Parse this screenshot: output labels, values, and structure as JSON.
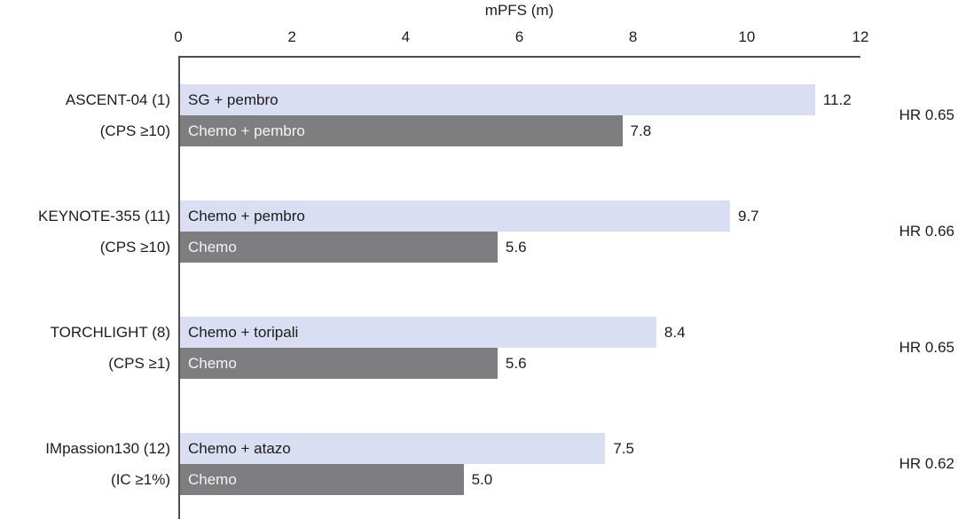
{
  "chart_data": {
    "type": "bar",
    "orientation": "horizontal",
    "title": "mPFS (m)",
    "xlabel": "mPFS (m)",
    "xlim": [
      0,
      12
    ],
    "ticks": [
      0,
      2,
      4,
      6,
      8,
      10,
      12
    ],
    "grid": false,
    "legend": false,
    "colors": {
      "intervention_bar": "#d9def2",
      "control_bar": "#7e7e80",
      "axis": "#4f4f4f"
    },
    "groups": [
      {
        "trial": "ASCENT-04 (1)",
        "population": "(CPS ≥10)",
        "hr": "HR 0.65",
        "bars": [
          {
            "label": "SG + pembro",
            "value": 11.2,
            "display": "11.2",
            "role": "intervention"
          },
          {
            "label": "Chemo + pembro",
            "value": 7.8,
            "display": "7.8",
            "role": "control"
          }
        ]
      },
      {
        "trial": "KEYNOTE-355 (11)",
        "population": "(CPS ≥10)",
        "hr": "HR 0.66",
        "bars": [
          {
            "label": "Chemo + pembro",
            "value": 9.7,
            "display": "9.7",
            "role": "intervention"
          },
          {
            "label": "Chemo",
            "value": 5.6,
            "display": "5.6",
            "role": "control"
          }
        ]
      },
      {
        "trial": "TORCHLIGHT (8)",
        "population": "(CPS ≥1)",
        "hr": "HR 0.65",
        "bars": [
          {
            "label": "Chemo + toripali",
            "value": 8.4,
            "display": "8.4",
            "role": "intervention"
          },
          {
            "label": "Chemo",
            "value": 5.6,
            "display": "5.6",
            "role": "control"
          }
        ]
      },
      {
        "trial": "IMpassion130 (12)",
        "population": "(IC ≥1%)",
        "hr": "HR 0.62",
        "bars": [
          {
            "label": "Chemo + atazo",
            "value": 7.5,
            "display": "7.5",
            "role": "intervention"
          },
          {
            "label": "Chemo",
            "value": 5.0,
            "display": "5.0",
            "role": "control"
          }
        ]
      }
    ]
  }
}
